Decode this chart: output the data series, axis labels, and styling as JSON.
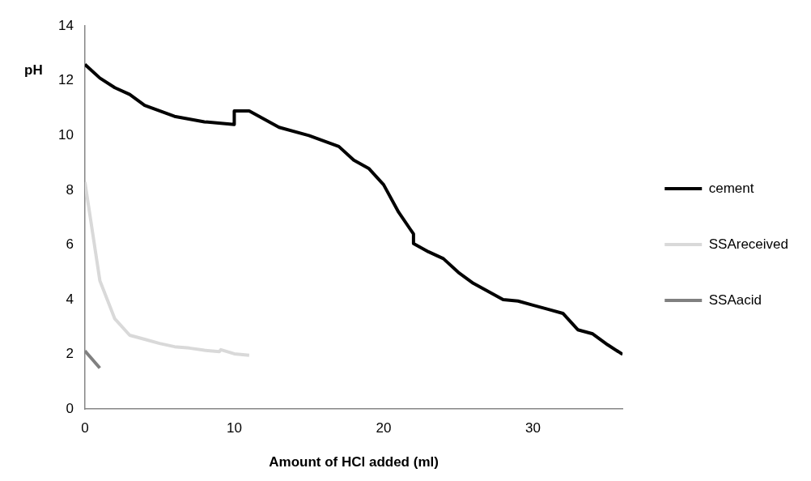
{
  "chart_data": {
    "type": "line",
    "xlabel": "Amount of HCl added (ml)",
    "ylabel": "pH",
    "xlim": [
      0,
      36
    ],
    "xticks": [
      0,
      10,
      20,
      30
    ],
    "ylim": [
      0,
      14
    ],
    "yticks": [
      0,
      2,
      4,
      6,
      8,
      10,
      12,
      14
    ],
    "grid": false,
    "legend": "right",
    "marker": "none",
    "series": [
      {
        "name": "cement",
        "color": "#000000",
        "x": [
          0,
          1,
          2,
          3,
          4,
          6,
          8,
          10,
          10,
          11,
          13,
          15,
          17,
          18,
          19,
          20,
          21,
          22,
          22,
          23,
          24,
          25,
          26,
          28,
          29,
          30,
          31,
          32,
          33,
          34,
          35,
          36
        ],
        "values": [
          12.6,
          12.1,
          11.75,
          11.5,
          11.1,
          10.7,
          10.5,
          10.4,
          10.9,
          10.9,
          10.3,
          10.0,
          9.6,
          9.1,
          8.8,
          8.2,
          7.2,
          6.4,
          6.05,
          5.75,
          5.5,
          5.0,
          4.6,
          4.0,
          3.95,
          3.8,
          3.65,
          3.5,
          2.9,
          2.75,
          2.35,
          2.0
        ]
      },
      {
        "name": "SSAreceived",
        "color": "#d9d9d9",
        "x": [
          0,
          1,
          2,
          3,
          4,
          5,
          6,
          7,
          8,
          9,
          9.1,
          10,
          11
        ],
        "values": [
          8.3,
          4.7,
          3.3,
          2.7,
          2.55,
          2.4,
          2.28,
          2.23,
          2.15,
          2.1,
          2.17,
          2.02,
          1.97
        ]
      },
      {
        "name": "SSAacid",
        "color": "#808080",
        "x": [
          0,
          1
        ],
        "values": [
          2.13,
          1.5
        ]
      }
    ]
  }
}
